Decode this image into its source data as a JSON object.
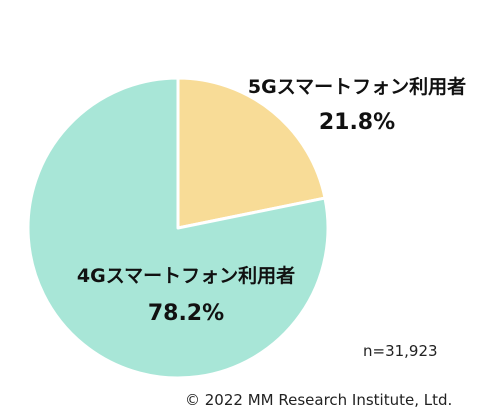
{
  "chart_data": {
    "type": "pie",
    "slices": [
      {
        "label": "5Gスマートフォン利用者",
        "value": 21.8,
        "value_label": "21.8%",
        "color": "#f8dc97"
      },
      {
        "label": "4Gスマートフォン利用者",
        "value": 78.2,
        "value_label": "78.2%",
        "color": "#a8e6d7"
      }
    ],
    "start_angle": "12 o'clock",
    "direction": "clockwise",
    "legend": "none (direct labels)"
  },
  "notes": {
    "sample_size": "n=31,923",
    "copyright": "© 2022 MM Research Institute, Ltd."
  }
}
